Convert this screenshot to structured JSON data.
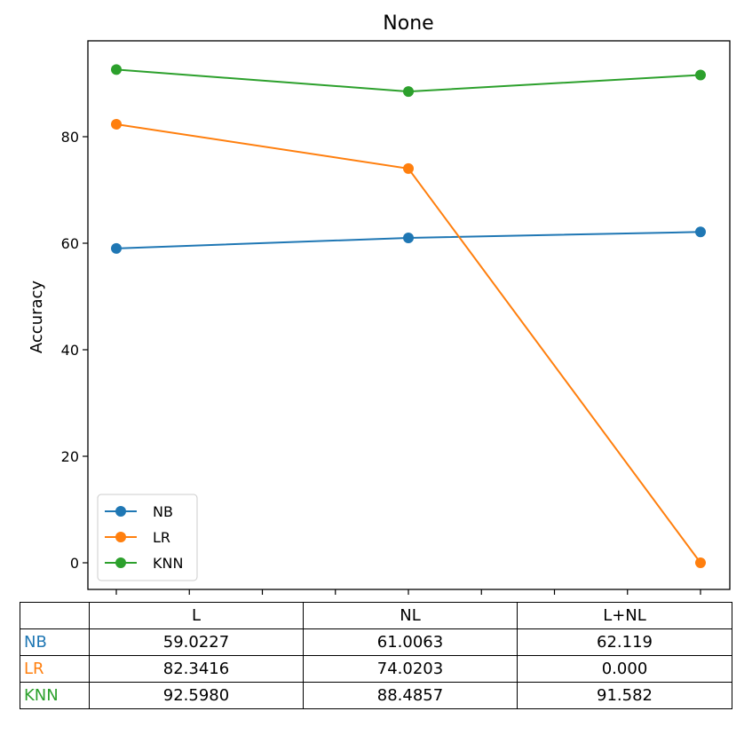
{
  "chart_data": {
    "type": "line",
    "title": "None",
    "xlabel": "",
    "ylabel": "Accuracy",
    "categories": [
      "L",
      "NL",
      "L+NL"
    ],
    "ylim": [
      -5,
      98
    ],
    "yticks": [
      0,
      20,
      40,
      60,
      80
    ],
    "grid": false,
    "legend_position": "lower-left",
    "series": [
      {
        "name": "NB",
        "color": "#1f77b4",
        "values": [
          59.0227,
          61.0063,
          62.119
        ]
      },
      {
        "name": "LR",
        "color": "#ff7f0e",
        "values": [
          82.3416,
          74.0203,
          0.0
        ]
      },
      {
        "name": "KNN",
        "color": "#2ca02c",
        "values": [
          92.598,
          88.4857,
          91.582
        ]
      }
    ]
  },
  "table": {
    "columns": [
      "L",
      "NL",
      "L+NL"
    ],
    "rows": [
      {
        "label": "NB",
        "color": "#1f77b4",
        "cells": [
          "59.0227",
          "61.0063",
          "62.119"
        ]
      },
      {
        "label": "LR",
        "color": "#ff7f0e",
        "cells": [
          "82.3416",
          "74.0203",
          "0.000"
        ]
      },
      {
        "label": "KNN",
        "color": "#2ca02c",
        "cells": [
          "92.5980",
          "88.4857",
          "91.582"
        ]
      }
    ]
  }
}
